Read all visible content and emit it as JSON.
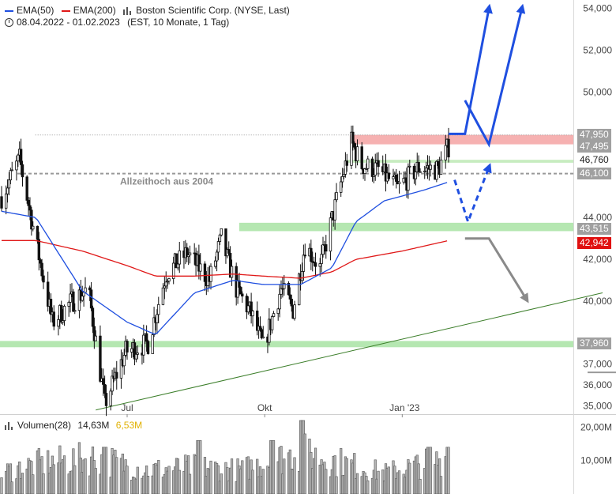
{
  "header": {
    "ema50_label": "EMA(50)",
    "ema200_label": "EMA(200)",
    "instrument": "Boston Scientific Corp. (NYSE, Last)",
    "period": "08.04.2022 - 01.02.2023",
    "period_detail": "(EST, 10 Monate, 1 Tag)",
    "ema50_color": "#1f4fe0",
    "ema200_color": "#e01818"
  },
  "annotation": {
    "ath_label": "Allzeithoch aus 2004"
  },
  "volume_legend": {
    "label": "Volumen(28)",
    "value1": "14,63M",
    "value2": "6,53M",
    "value2_color": "#e0b000"
  },
  "price_tags": [
    {
      "text": "47,950",
      "bg": "#a0a0a0",
      "fg": "#ffffff"
    },
    {
      "text": "47,495",
      "bg": "#a0a0a0",
      "fg": "#ffffff"
    },
    {
      "text": "46,760",
      "bg": "#ffffff",
      "fg": "#222222"
    },
    {
      "text": "46,100",
      "bg": "#a0a0a0",
      "fg": "#ffffff"
    },
    {
      "text": "43,515",
      "bg": "#a0a0a0",
      "fg": "#ffffff"
    },
    {
      "text": "42,942",
      "bg": "#e01010",
      "fg": "#ffffff"
    },
    {
      "text": "37,960",
      "bg": "#a0a0a0",
      "fg": "#ffffff"
    }
  ],
  "chart_data": {
    "type": "candlestick",
    "price_axis": {
      "ticks": [
        "54,000",
        "52,000",
        "50,000",
        "44,000",
        "42,000",
        "40,000",
        "37,000",
        "36,000",
        "35,000"
      ],
      "tick_values": [
        54,
        52,
        50,
        44,
        42,
        40,
        37,
        36,
        35
      ],
      "ylim": [
        34.6,
        54.4
      ]
    },
    "volume_axis": {
      "ticks": [
        "20,00M",
        "10,00M"
      ],
      "tick_values": [
        20,
        10
      ],
      "ylim": [
        0,
        22
      ]
    },
    "x_labels": [
      "Jul",
      "Okt",
      "Jan '23"
    ],
    "x_label_dates": [
      "2022-07-01",
      "2022-10-01",
      "2023-01-01"
    ],
    "date_range": [
      "2022-04-08",
      "2023-02-01"
    ],
    "price_path": [
      [
        "2022-04-08",
        45.0
      ],
      [
        "2022-04-20",
        46.8
      ],
      [
        "2022-05-02",
        42.5
      ],
      [
        "2022-05-12",
        39.0
      ],
      [
        "2022-05-25",
        40.0
      ],
      [
        "2022-06-05",
        40.6
      ],
      [
        "2022-06-16",
        35.1
      ],
      [
        "2022-06-30",
        37.6
      ],
      [
        "2022-07-15",
        38.0
      ],
      [
        "2022-07-27",
        41.3
      ],
      [
        "2022-08-10",
        42.3
      ],
      [
        "2022-08-25",
        41.0
      ],
      [
        "2022-09-02",
        43.0
      ],
      [
        "2022-09-12",
        40.6
      ],
      [
        "2022-09-22",
        39.4
      ],
      [
        "2022-09-30",
        37.8
      ],
      [
        "2022-10-12",
        40.6
      ],
      [
        "2022-10-20",
        39.6
      ],
      [
        "2022-10-28",
        42.7
      ],
      [
        "2022-11-07",
        41.6
      ],
      [
        "2022-11-18",
        44.8
      ],
      [
        "2022-11-28",
        47.6
      ],
      [
        "2022-12-05",
        46.5
      ],
      [
        "2022-12-16",
        46.3
      ],
      [
        "2022-12-29",
        45.4
      ],
      [
        "2023-01-12",
        46.4
      ],
      [
        "2023-01-25",
        46.3
      ],
      [
        "2023-02-01",
        47.4
      ]
    ],
    "ema50_path": [
      [
        "2022-04-08",
        44.3
      ],
      [
        "2022-05-01",
        44.0
      ],
      [
        "2022-06-01",
        40.5
      ],
      [
        "2022-07-01",
        39.0
      ],
      [
        "2022-07-20",
        38.4
      ],
      [
        "2022-08-15",
        40.4
      ],
      [
        "2022-09-10",
        41.0
      ],
      [
        "2022-09-30",
        40.8
      ],
      [
        "2022-10-25",
        40.8
      ],
      [
        "2022-11-15",
        41.6
      ],
      [
        "2022-12-01",
        43.8
      ],
      [
        "2022-12-20",
        44.8
      ],
      [
        "2023-01-15",
        45.3
      ],
      [
        "2023-02-01",
        45.7
      ]
    ],
    "ema200_path": [
      [
        "2022-04-08",
        42.9
      ],
      [
        "2022-05-01",
        42.9
      ],
      [
        "2022-06-01",
        42.4
      ],
      [
        "2022-07-01",
        41.7
      ],
      [
        "2022-07-20",
        41.2
      ],
      [
        "2022-08-15",
        41.2
      ],
      [
        "2022-09-10",
        41.3
      ],
      [
        "2022-09-30",
        41.2
      ],
      [
        "2022-10-25",
        41.1
      ],
      [
        "2022-11-15",
        41.4
      ],
      [
        "2022-12-01",
        42.0
      ],
      [
        "2023-01-01",
        42.4
      ],
      [
        "2023-02-01",
        42.9
      ]
    ],
    "zones": [
      {
        "from": 47.5,
        "to": 47.95,
        "color": "#f4a3a3",
        "start": "2022-11-28"
      },
      {
        "from": 46.62,
        "to": 46.76,
        "color": "#bde9b5",
        "start": "2022-11-25"
      },
      {
        "from": 43.35,
        "to": 43.75,
        "color": "#a8e3a3",
        "start": "2022-09-15"
      },
      {
        "from": 37.8,
        "to": 38.1,
        "color": "#a8e3a3",
        "start": "2022-04-08"
      }
    ],
    "reference_lines": [
      {
        "value": 47.95,
        "style": "dotted",
        "start": "2022-04-20"
      },
      {
        "value": 46.1,
        "style": "dashed",
        "start": "2022-04-08"
      }
    ],
    "trendline": {
      "from": [
        "2022-06-10",
        34.8
      ],
      "to": [
        "2023-05-15",
        40.4
      ],
      "color": "#3a7d28"
    },
    "projections": {
      "blue_solid_1": [
        [
          "2023-02-01",
          48.0
        ],
        [
          "2023-02-12",
          48.0
        ],
        [
          "2023-02-28",
          54.0
        ]
      ],
      "blue_solid_2": [
        [
          "2023-02-12",
          49.6
        ],
        [
          "2023-02-28",
          47.5
        ],
        [
          "2023-03-22",
          54.0
        ]
      ],
      "blue_dashed": [
        [
          "2023-02-05",
          45.8
        ],
        [
          "2023-02-14",
          43.8
        ],
        [
          "2023-02-28",
          46.4
        ]
      ],
      "gray": [
        [
          "2023-02-12",
          43.0
        ],
        [
          "2023-02-28",
          43.0
        ],
        [
          "2023-03-25",
          40.1
        ]
      ]
    },
    "volume_profile": [
      [
        "2022-04-08",
        7
      ],
      [
        "2022-05-01",
        10
      ],
      [
        "2022-06-10",
        12
      ],
      [
        "2022-07-15",
        8
      ],
      [
        "2022-08-15",
        9
      ],
      [
        "2022-09-15",
        8
      ],
      [
        "2022-10-25",
        14
      ],
      [
        "2022-11-25",
        10
      ],
      [
        "2022-12-20",
        7
      ],
      [
        "2023-02-01",
        12
      ]
    ],
    "volume_spikes": [
      [
        "2022-06-16",
        14
      ],
      [
        "2022-08-18",
        16
      ],
      [
        "2022-10-06",
        16
      ],
      [
        "2022-10-26",
        22
      ],
      [
        "2023-01-19",
        14
      ],
      [
        "2023-02-01",
        14
      ]
    ]
  }
}
